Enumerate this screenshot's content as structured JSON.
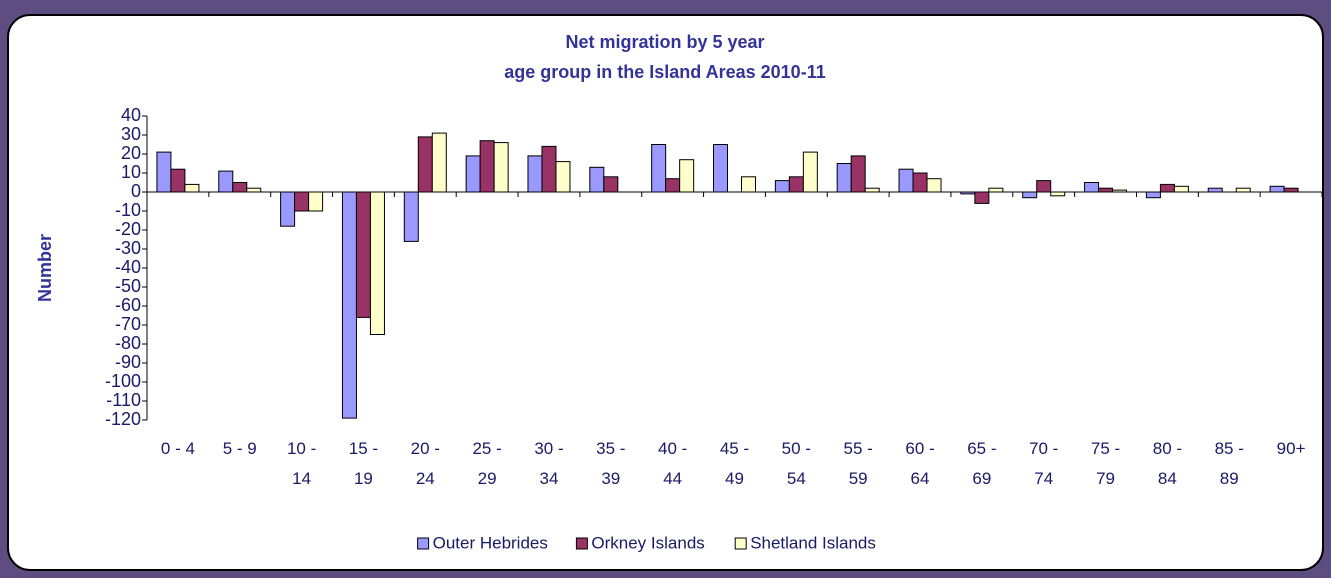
{
  "chart_data": {
    "type": "bar",
    "title": [
      "Net migration by 5 year",
      "age group in the Island Areas 2010-11"
    ],
    "y_label": "Number",
    "categories": [
      "0 - 4",
      "5 - 9",
      "10 - 14",
      "15 - 19",
      "20 - 24",
      "25 - 29",
      "30 - 34",
      "35 - 39",
      "40 - 44",
      "45 - 49",
      "50 - 54",
      "55 - 59",
      "60 - 64",
      "65 - 69",
      "70 - 74",
      "75 - 79",
      "80 - 84",
      "85 - 89",
      "90+"
    ],
    "series": [
      {
        "name": "Outer Hebrides",
        "color": "#9999ff",
        "values": [
          21,
          11,
          -18,
          -119,
          -26,
          19,
          19,
          13,
          25,
          25,
          6,
          15,
          12,
          -1,
          -3,
          5,
          -3,
          2,
          3
        ]
      },
      {
        "name": "Orkney Islands",
        "color": "#993366",
        "values": [
          12,
          5,
          -10,
          -66,
          29,
          27,
          24,
          8,
          7,
          0,
          8,
          19,
          10,
          -6,
          6,
          2,
          4,
          0,
          2
        ]
      },
      {
        "name": "Shetland Islands",
        "color": "#ffffcc",
        "values": [
          4,
          2,
          -10,
          -75,
          31,
          26,
          16,
          0,
          17,
          8,
          21,
          2,
          7,
          2,
          -2,
          1,
          3,
          2,
          0
        ]
      }
    ],
    "ylim": [
      -120,
      40
    ],
    "yticks": [
      40,
      30,
      20,
      10,
      0,
      -10,
      -20,
      -30,
      -40,
      -50,
      -60,
      -70,
      -80,
      -90,
      -100,
      -110,
      -120
    ],
    "legend": "bottom"
  }
}
